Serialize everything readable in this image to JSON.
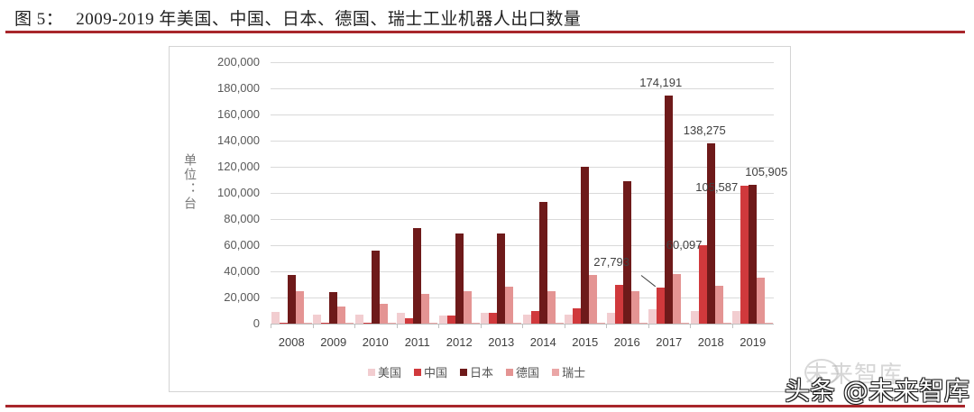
{
  "figure": {
    "label": "图 5：",
    "title": "2009-2019 年美国、中国、日本、德国、瑞士工业机器人出口数量"
  },
  "colors": {
    "rule": "#a8262b",
    "美国": "#f2cdd0",
    "中国": "#d0393c",
    "日本": "#6e1a1a",
    "德国": "#e49493",
    "瑞士": "#eaa6a6"
  },
  "watermark": {
    "top_text": "未来智库",
    "main_text": "头条 @未来智库"
  },
  "chart_data": {
    "type": "bar",
    "title": "2009-2019 年美国、中国、日本、德国、瑞士工业机器人出口数量",
    "xlabel": "",
    "ylabel": "单位：台",
    "ylim": [
      0,
      200000
    ],
    "yticks": [
      "0",
      "20,000",
      "40,000",
      "60,000",
      "80,000",
      "100,000",
      "120,000",
      "140,000",
      "160,000",
      "180,000",
      "200,000"
    ],
    "grid": true,
    "legend_position": "bottom",
    "categories": [
      "2008",
      "2009",
      "2010",
      "2011",
      "2012",
      "2013",
      "2014",
      "2015",
      "2016",
      "2017",
      "2018",
      "2019"
    ],
    "series": [
      {
        "name": "美国",
        "values": [
          9000,
          7000,
          7000,
          8000,
          6000,
          8000,
          7000,
          7000,
          8000,
          11000,
          10000,
          10000
        ]
      },
      {
        "name": "中国",
        "values": [
          1000,
          500,
          1000,
          4000,
          6000,
          8000,
          10000,
          12000,
          30000,
          27793,
          60097,
          105587
        ]
      },
      {
        "name": "日本",
        "values": [
          37000,
          24000,
          56000,
          73000,
          69000,
          69000,
          93000,
          120000,
          109000,
          174191,
          138275,
          105905
        ]
      },
      {
        "name": "德国",
        "values": [
          25000,
          13000,
          15000,
          23000,
          25000,
          28000,
          25000,
          37000,
          25000,
          38000,
          29000,
          35000
        ]
      },
      {
        "name": "瑞士",
        "values": [
          500,
          300,
          400,
          500,
          500,
          500,
          500,
          500,
          500,
          500,
          500,
          500
        ]
      }
    ],
    "annotations": [
      {
        "text": "174,191",
        "series": "日本",
        "category": "2017"
      },
      {
        "text": "138,275",
        "series": "日本",
        "category": "2018"
      },
      {
        "text": "105,905",
        "series": "日本",
        "category": "2019"
      },
      {
        "text": "105,587",
        "series": "中国",
        "category": "2019"
      },
      {
        "text": "60,097",
        "series": "中国",
        "category": "2018"
      },
      {
        "text": "27,793",
        "series": "中国",
        "category": "2017"
      }
    ]
  }
}
